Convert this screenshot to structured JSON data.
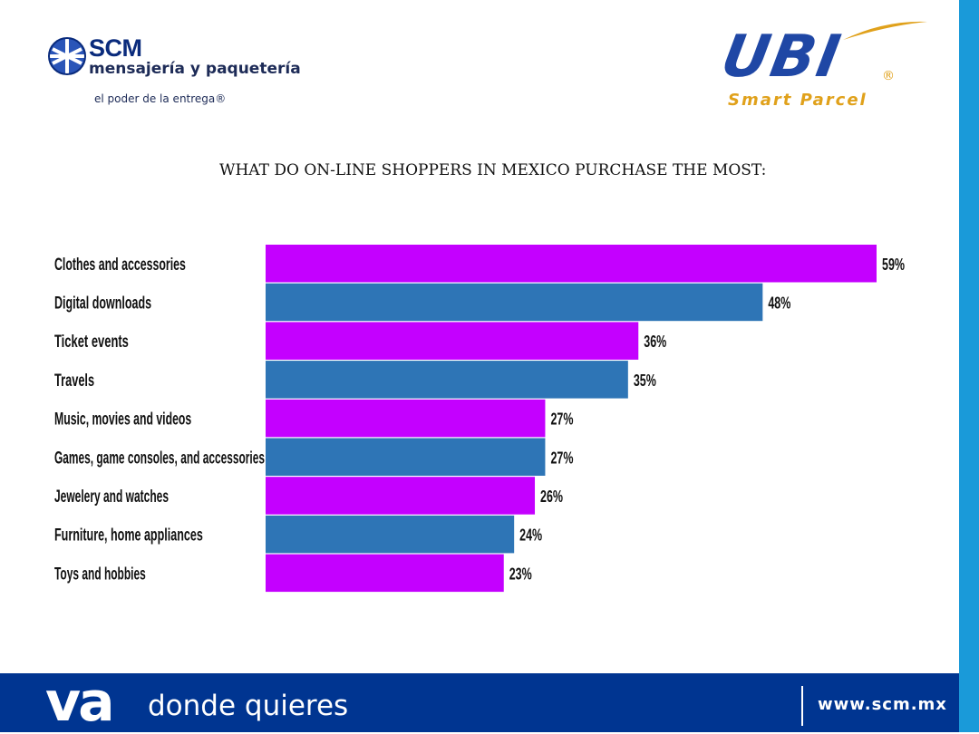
{
  "header": {
    "scm_logo": {
      "icon": "globe-icon",
      "name": "SCM",
      "subtitle": "mensajería y paquetería",
      "tagline": "el poder de la entrega®"
    },
    "ubi_logo": {
      "name": "UBI",
      "registered": "®",
      "subtitle": "Smart Parcel"
    }
  },
  "footer": {
    "slogan_bold": "va",
    "slogan": "donde quieres",
    "url": "www.scm.mx"
  },
  "colors": {
    "magenta": "#c400ff",
    "blue": "#2e75b6",
    "navy": "#003591",
    "stripe": "#1a9ad9"
  },
  "chart_data": {
    "type": "bar",
    "orientation": "horizontal",
    "title": "WHAT DO ON-LINE SHOPPERS IN MEXICO PURCHASE THE MOST:",
    "categories": [
      "Clothes and accessories",
      "Digital downloads",
      "Ticket events",
      "Travels",
      "Music, movies and videos",
      "Games, game consoles, and accessories",
      "Jewelery and watches",
      "Furniture, home appliances",
      "Toys and hobbies"
    ],
    "values": [
      59,
      48,
      36,
      35,
      27,
      27,
      26,
      24,
      23
    ],
    "value_labels": [
      "59%",
      "48%",
      "36%",
      "35%",
      "27%",
      "27%",
      "26%",
      "24%",
      "23%"
    ],
    "bar_colors": [
      "#c400ff",
      "#2e75b6",
      "#c400ff",
      "#2e75b6",
      "#c400ff",
      "#2e75b6",
      "#c400ff",
      "#2e75b6",
      "#c400ff"
    ],
    "xlim": [
      0,
      59
    ],
    "grid": false,
    "legend": "none"
  }
}
